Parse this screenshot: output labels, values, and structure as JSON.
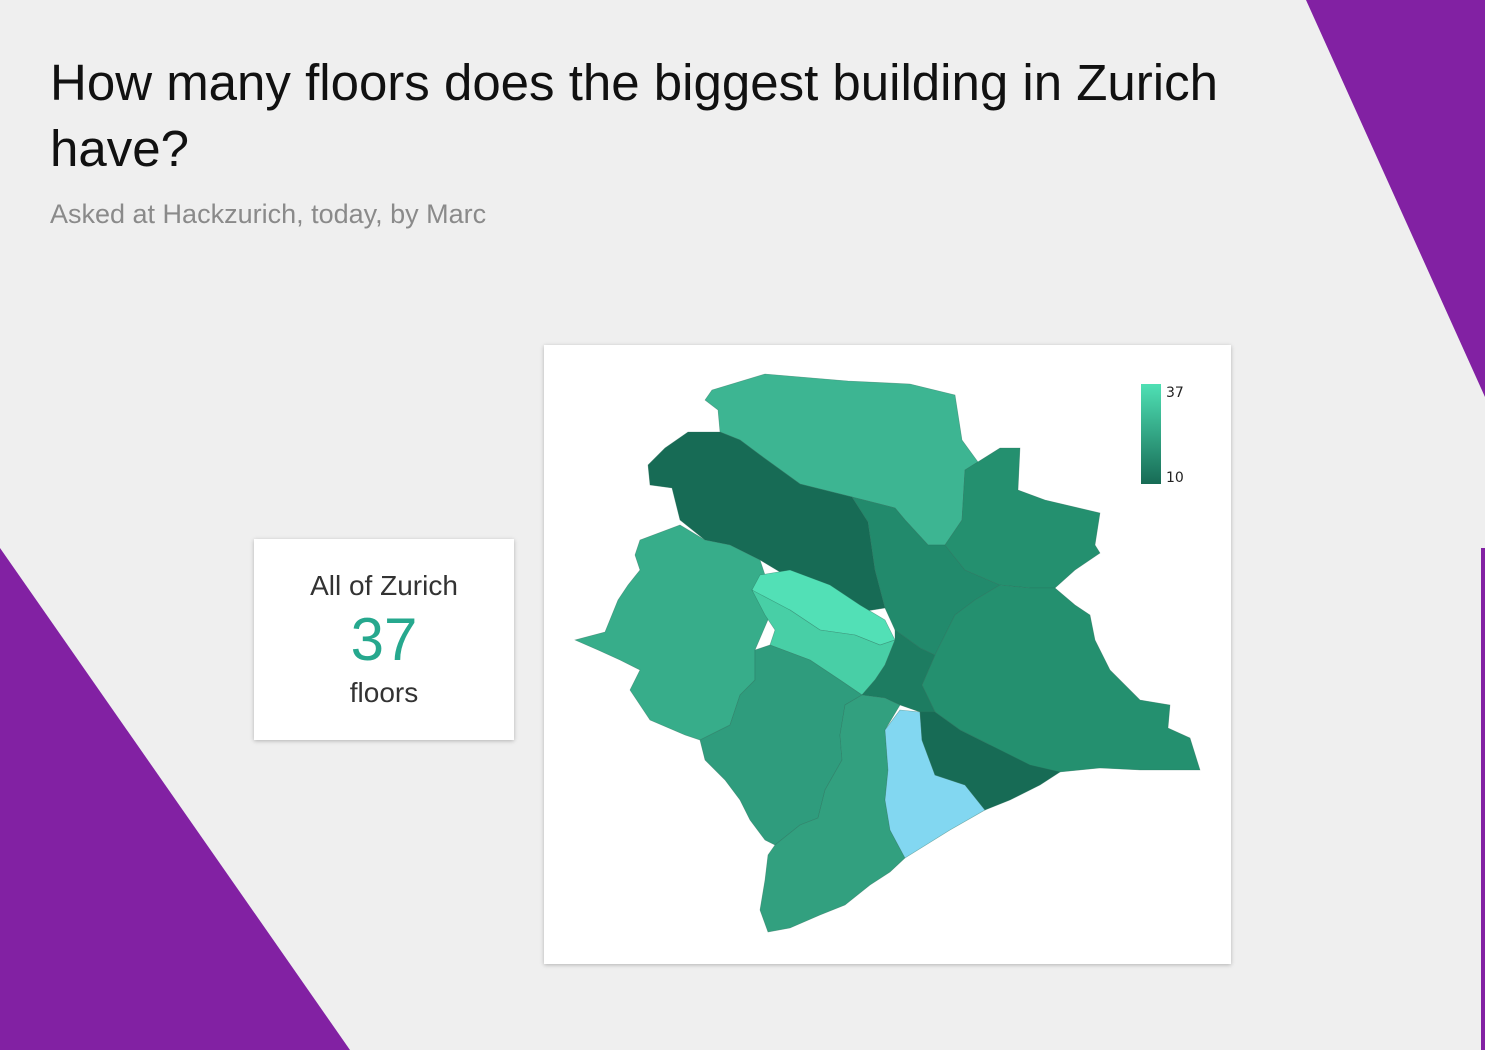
{
  "question": {
    "title": "How many floors does the biggest building in Zurich have?",
    "subtitle": "Asked at Hackzurich, today, by Marc"
  },
  "summary": {
    "label": "All of Zurich",
    "value": "37",
    "unit": "floors"
  },
  "legend": {
    "max_label": "37",
    "min_label": "10",
    "max_color": "#4fe0b4",
    "min_color": "#176b55"
  },
  "colors": {
    "background": "#efefef",
    "accent_purple": "#8221a3",
    "value_teal": "#26a88e",
    "no_data": "#82d7f1"
  }
}
